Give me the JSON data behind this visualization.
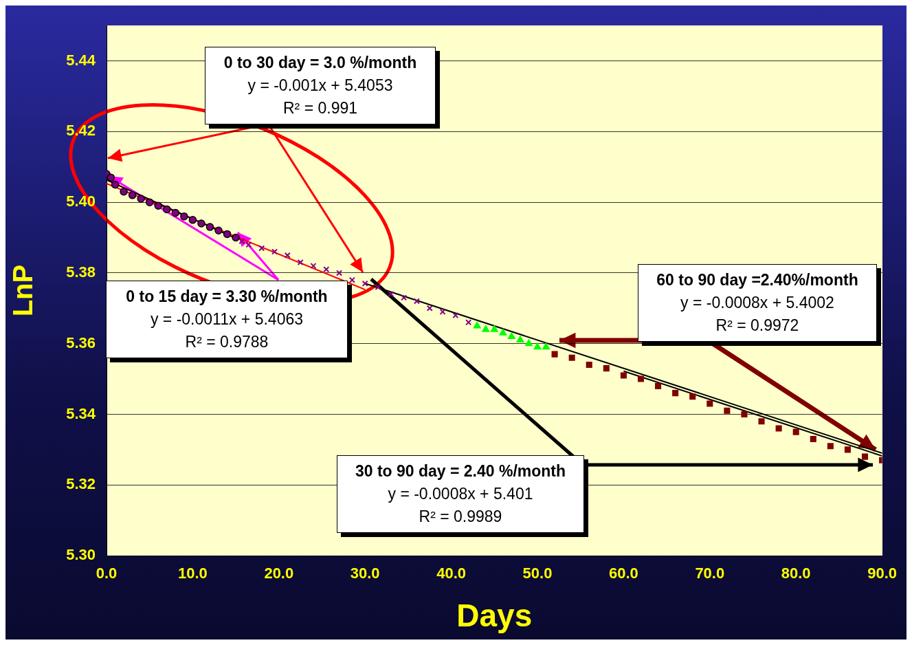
{
  "chart_data": {
    "type": "scatter",
    "xlabel": "Days",
    "ylabel": "LnP",
    "xlim": [
      0,
      90
    ],
    "ylim": [
      5.3,
      5.45
    ],
    "xticks": [
      {
        "value": 0,
        "label": "0.0"
      },
      {
        "value": 10,
        "label": "10.0"
      },
      {
        "value": 20,
        "label": "20.0"
      },
      {
        "value": 30,
        "label": "30.0"
      },
      {
        "value": 40,
        "label": "40.0"
      },
      {
        "value": 50,
        "label": "50.0"
      },
      {
        "value": 60,
        "label": "60.0"
      },
      {
        "value": 70,
        "label": "70.0"
      },
      {
        "value": 80,
        "label": "80.0"
      },
      {
        "value": 90,
        "label": "90.0"
      }
    ],
    "yticks": [
      {
        "value": 5.3,
        "label": "5.30"
      },
      {
        "value": 5.32,
        "label": "5.32"
      },
      {
        "value": 5.34,
        "label": "5.34"
      },
      {
        "value": 5.36,
        "label": "5.36"
      },
      {
        "value": 5.38,
        "label": "5.38"
      },
      {
        "value": 5.4,
        "label": "5.40"
      },
      {
        "value": 5.42,
        "label": "5.42"
      },
      {
        "value": 5.44,
        "label": "5.44"
      }
    ],
    "grid": "y",
    "legend": false,
    "series": [
      {
        "marker": "circle",
        "color": "#800080",
        "x": [
          0,
          0.5,
          1,
          2,
          3,
          4,
          5,
          6,
          7,
          8,
          9,
          10,
          11,
          12,
          13,
          14,
          15
        ],
        "values": [
          5.408,
          5.407,
          5.405,
          5.403,
          5.402,
          5.401,
          5.4,
          5.399,
          5.398,
          5.397,
          5.396,
          5.395,
          5.394,
          5.393,
          5.392,
          5.391,
          5.39
        ]
      },
      {
        "marker": "cross",
        "color": "#800080",
        "x": [
          15.7,
          16.5,
          18,
          19.5,
          21,
          22.5,
          24,
          25.5,
          27,
          28.5,
          30,
          31.5,
          33,
          34.5,
          36,
          37.5,
          39,
          40.5,
          42
        ],
        "values": [
          5.389,
          5.388,
          5.387,
          5.386,
          5.385,
          5.383,
          5.382,
          5.381,
          5.38,
          5.378,
          5.377,
          5.376,
          5.374,
          5.373,
          5.372,
          5.37,
          5.369,
          5.368,
          5.366
        ]
      },
      {
        "marker": "triangle",
        "color": "#00ff00",
        "x": [
          43,
          44,
          45,
          46,
          47,
          48,
          49,
          50,
          51
        ],
        "values": [
          5.365,
          5.364,
          5.364,
          5.363,
          5.362,
          5.361,
          5.36,
          5.359,
          5.359
        ]
      },
      {
        "marker": "square",
        "color": "#800000",
        "x": [
          52,
          54,
          56,
          58,
          60,
          62,
          64,
          66,
          68,
          70,
          72,
          74,
          76,
          78,
          80,
          82,
          84,
          86,
          88,
          90
        ],
        "values": [
          5.357,
          5.356,
          5.354,
          5.353,
          5.351,
          5.35,
          5.348,
          5.346,
          5.345,
          5.343,
          5.341,
          5.34,
          5.338,
          5.336,
          5.335,
          5.333,
          5.331,
          5.33,
          5.328,
          5.327
        ]
      },
      {
        "type": "line",
        "marker": "none",
        "color": "#000000",
        "x": [
          0,
          15
        ],
        "values": [
          5.4063,
          5.3898
        ]
      },
      {
        "type": "line",
        "marker": "none",
        "color": "#ff0000",
        "x": [
          0,
          30
        ],
        "values": [
          5.4053,
          5.3753
        ]
      },
      {
        "type": "line",
        "marker": "none",
        "color": "#000000",
        "x": [
          30,
          90
        ],
        "values": [
          5.377,
          5.329
        ]
      },
      {
        "type": "line",
        "marker": "none",
        "color": "#000000",
        "x": [
          60,
          90
        ],
        "values": [
          5.3522,
          5.3282
        ]
      }
    ],
    "annotations": [
      "0 to 30 day = 3.0 %/month\ny = -0.001x + 5.4053\nR² = 0.991",
      {
        "text": "0 to 15 day = 3.30 %/month\ny = -0.0011x + 5.4063\nR² = 0.9788",
        "x": 0,
        "y": 5.408
      },
      "60 to 90 day =2.40%/month\ny = -0.0008x + 5.4002\nR² = 0.9972",
      "30 to 90 day = 2.40 %/month\ny = -0.0008x + 5.401\nR² = 0.9989"
    ]
  }
}
